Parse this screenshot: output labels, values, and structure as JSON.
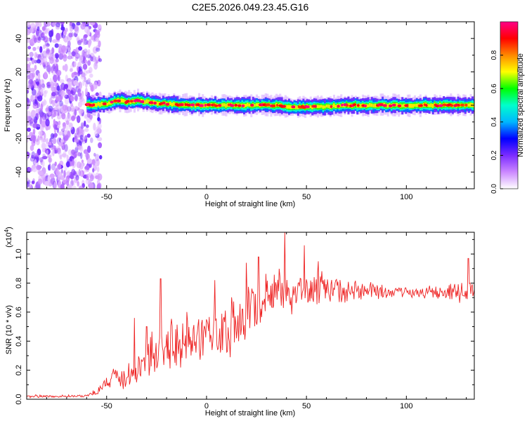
{
  "figure": {
    "title": "C2E5.2026.049.23.45.G16"
  },
  "chart_data": [
    {
      "type": "heatmap",
      "title": "C2E5.2026.049.23.45.G16",
      "xlabel": "Height of straight line (km)",
      "ylabel": "Frequency (Hz)",
      "xlim": [
        -90,
        134
      ],
      "ylim": [
        -50,
        50
      ],
      "x_ticks": [
        -50,
        0,
        50,
        100
      ],
      "x_tick_labels": [
        "-50",
        "0",
        "50",
        "100"
      ],
      "y_ticks": [
        -40,
        -20,
        0,
        20,
        40
      ],
      "y_tick_labels": [
        "-40",
        "-20",
        "0",
        "20",
        "40"
      ],
      "grid": false,
      "noise_region_x": [
        -90,
        -55
      ],
      "signal_band": {
        "x_range": [
          -60,
          134
        ],
        "center_frequency_hz": [
          {
            "x": -60,
            "y": 0
          },
          {
            "x": -50,
            "y": 1
          },
          {
            "x": -45,
            "y": 3
          },
          {
            "x": -40,
            "y": 2
          },
          {
            "x": -35,
            "y": 3
          },
          {
            "x": -30,
            "y": 2
          },
          {
            "x": -25,
            "y": 1
          },
          {
            "x": -20,
            "y": 1
          },
          {
            "x": -10,
            "y": 0
          },
          {
            "x": 0,
            "y": 0
          },
          {
            "x": 20,
            "y": 0
          },
          {
            "x": 35,
            "y": 0
          },
          {
            "x": 40,
            "y": -1
          },
          {
            "x": 55,
            "y": -1
          },
          {
            "x": 70,
            "y": 0
          },
          {
            "x": 100,
            "y": 0
          },
          {
            "x": 134,
            "y": 0
          }
        ],
        "peak_amplitude": 1.0
      },
      "colorbar": {
        "label": "Normalized spectral amplitude",
        "range": [
          0,
          1
        ],
        "ticks": [
          0.0,
          0.2,
          0.4,
          0.6,
          0.8
        ],
        "tick_labels": [
          "0.0",
          "0.2",
          "0.4",
          "0.6",
          "0.8"
        ],
        "colormap": [
          "#ffffff",
          "#cc88ff",
          "#7b2cff",
          "#0000ff",
          "#00b7ff",
          "#00ffcc",
          "#00ff00",
          "#ffff00",
          "#ff8800",
          "#ff0000",
          "#ff0088"
        ]
      }
    },
    {
      "type": "line",
      "xlabel": "Height of straight line (km)",
      "ylabel": "SNR (10 * v/v)",
      "y_multiplier_label": "(x10",
      "y_multiplier_exp": "4",
      "y_multiplier_close": ")",
      "xlim": [
        -90,
        134
      ],
      "ylim": [
        0,
        1.15
      ],
      "x_ticks": [
        -50,
        0,
        50,
        100
      ],
      "x_tick_labels": [
        "-50",
        "0",
        "50",
        "100"
      ],
      "y_ticks": [
        0.0,
        0.2,
        0.4,
        0.6,
        0.8,
        1.0
      ],
      "y_tick_labels": [
        "0.0",
        "0.2",
        "0.4",
        "0.6",
        "0.8",
        "1.0"
      ],
      "grid": false,
      "series": [
        {
          "color": "#ee2222",
          "trend": [
            {
              "x": -90,
              "y": 0.02
            },
            {
              "x": -60,
              "y": 0.02
            },
            {
              "x": -55,
              "y": 0.05
            },
            {
              "x": -50,
              "y": 0.12
            },
            {
              "x": -45,
              "y": 0.16
            },
            {
              "x": -40,
              "y": 0.12
            },
            {
              "x": -35,
              "y": 0.2
            },
            {
              "x": -30,
              "y": 0.28
            },
            {
              "x": -25,
              "y": 0.3
            },
            {
              "x": -20,
              "y": 0.34
            },
            {
              "x": -10,
              "y": 0.38
            },
            {
              "x": 0,
              "y": 0.42
            },
            {
              "x": 10,
              "y": 0.46
            },
            {
              "x": 20,
              "y": 0.56
            },
            {
              "x": 30,
              "y": 0.66
            },
            {
              "x": 40,
              "y": 0.72
            },
            {
              "x": 50,
              "y": 0.74
            },
            {
              "x": 60,
              "y": 0.74
            },
            {
              "x": 70,
              "y": 0.74
            },
            {
              "x": 80,
              "y": 0.74
            },
            {
              "x": 100,
              "y": 0.73
            },
            {
              "x": 120,
              "y": 0.73
            },
            {
              "x": 134,
              "y": 0.74
            }
          ],
          "spread": [
            {
              "x": -90,
              "y": 0.01
            },
            {
              "x": -60,
              "y": 0.01
            },
            {
              "x": -50,
              "y": 0.05
            },
            {
              "x": -35,
              "y": 0.12
            },
            {
              "x": -20,
              "y": 0.18
            },
            {
              "x": 0,
              "y": 0.2
            },
            {
              "x": 20,
              "y": 0.2
            },
            {
              "x": 40,
              "y": 0.18
            },
            {
              "x": 60,
              "y": 0.12
            },
            {
              "x": 80,
              "y": 0.06
            },
            {
              "x": 100,
              "y": 0.04
            },
            {
              "x": 120,
              "y": 0.06
            },
            {
              "x": 134,
              "y": 0.1
            }
          ],
          "peaks": [
            {
              "x": -23,
              "y": 0.83
            },
            {
              "x": -30,
              "y": 0.5
            },
            {
              "x": -36,
              "y": 0.56
            },
            {
              "x": 4,
              "y": 0.82
            },
            {
              "x": 20,
              "y": 0.94
            },
            {
              "x": 26,
              "y": 0.98
            },
            {
              "x": 39,
              "y": 1.15
            },
            {
              "x": 49,
              "y": 1.06
            },
            {
              "x": 56,
              "y": 0.95
            },
            {
              "x": 131,
              "y": 0.97
            }
          ]
        }
      ]
    }
  ]
}
